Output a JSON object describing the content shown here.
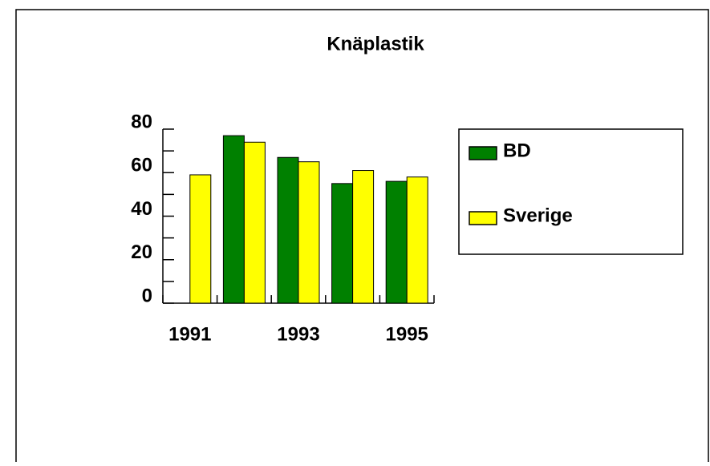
{
  "chart_data": {
    "type": "bar",
    "title": "Knäplastik",
    "categories": [
      "1991",
      null,
      "1993",
      null,
      "1995"
    ],
    "series": [
      {
        "name": "BD",
        "color": "#008000",
        "values": [
          null,
          77,
          67,
          55,
          56
        ]
      },
      {
        "name": "Sverige",
        "color": "#ffff00",
        "values": [
          59,
          74,
          65,
          61,
          58
        ]
      }
    ],
    "ylim": [
      0,
      80
    ],
    "yticks": [
      0,
      20,
      40,
      60,
      80
    ],
    "yminorticks": [
      10,
      30,
      50,
      70
    ],
    "grid": false,
    "legend": "right"
  }
}
